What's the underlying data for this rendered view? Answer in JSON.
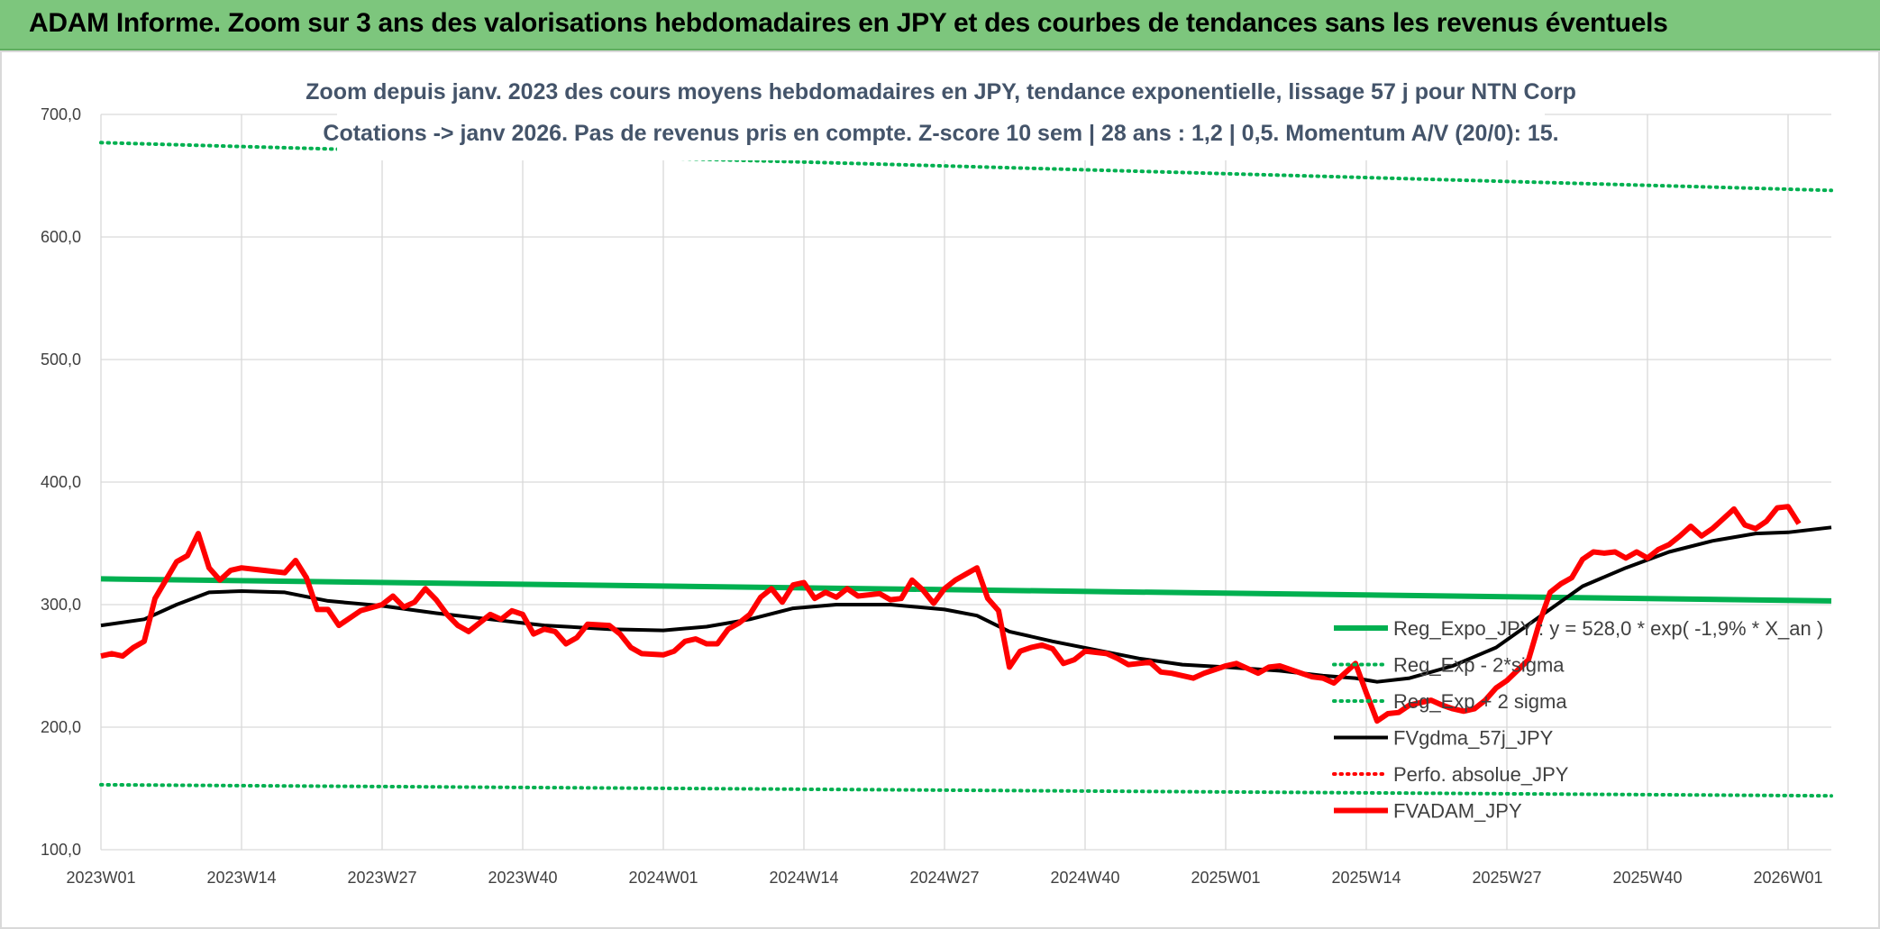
{
  "banner": {
    "title": "ADAM Informe. Zoom sur 3 ans des valorisations hebdomadaires en JPY et des courbes de tendances sans les revenus éventuels"
  },
  "colors": {
    "banner_bg": "#7dc67d",
    "green": "#00b050",
    "black": "#000000",
    "red": "#ff0000",
    "dark_red": "#c00000",
    "grid": "#d9d9d9",
    "subtitle": "#44546a"
  },
  "chart_data": {
    "type": "line",
    "subtitle_lines": [
      "Zoom depuis janv. 2023 des cours moyens hebdomadaires en JPY, tendance exponentielle, lissage 57 j pour NTN Corp",
      "Cotations -> janv 2026. Pas de revenus pris en compte. Z-score 10 sem | 28 ans : 1,2 | 0,5. Momentum A/V (20/0): 15."
    ],
    "ylim": [
      100,
      700
    ],
    "yticks": [
      "100,0",
      "200,0",
      "300,0",
      "400,0",
      "500,0",
      "600,0",
      "700,0"
    ],
    "x_start": "2023W01",
    "x_end": "2026W05",
    "xticks": [
      "2023W01",
      "2023W14",
      "2023W27",
      "2023W40",
      "2024W01",
      "2024W14",
      "2024W27",
      "2024W40",
      "2025W01",
      "2025W14",
      "2025W27",
      "2025W40",
      "2026W01"
    ],
    "grid": true,
    "legend_position": "bottom-right",
    "series": [
      {
        "name": "Reg_Expo_JPY : y = 528,0 * exp( -1,9% *  X_an )",
        "style": "solid-thick",
        "color": "#00b050",
        "points": [
          [
            "2023W01",
            321
          ],
          [
            "2026W05",
            303
          ]
        ]
      },
      {
        "name": "Reg_Exp - 2*sigma",
        "style": "dotted",
        "color": "#00b050",
        "points": [
          [
            "2023W01",
            153
          ],
          [
            "2026W05",
            144
          ]
        ]
      },
      {
        "name": "Reg_Exp + 2 sigma",
        "style": "dotted",
        "color": "#00b050",
        "points": [
          [
            "2023W01",
            677
          ],
          [
            "2026W05",
            638
          ]
        ]
      },
      {
        "name": "FVgdma_57j_JPY",
        "style": "solid",
        "color": "#000000",
        "points": [
          [
            "2023W01",
            283
          ],
          [
            "2023W05",
            288
          ],
          [
            "2023W08",
            300
          ],
          [
            "2023W11",
            310
          ],
          [
            "2023W14",
            311
          ],
          [
            "2023W18",
            310
          ],
          [
            "2023W22",
            303
          ],
          [
            "2023W27",
            299
          ],
          [
            "2023W32",
            293
          ],
          [
            "2023W37",
            288
          ],
          [
            "2023W42",
            283
          ],
          [
            "2023W48",
            280
          ],
          [
            "2024W01",
            279
          ],
          [
            "2024W05",
            282
          ],
          [
            "2024W09",
            288
          ],
          [
            "2024W13",
            297
          ],
          [
            "2024W17",
            300
          ],
          [
            "2024W22",
            300
          ],
          [
            "2024W27",
            296
          ],
          [
            "2024W30",
            291
          ],
          [
            "2024W33",
            278
          ],
          [
            "2024W37",
            270
          ],
          [
            "2024W41",
            263
          ],
          [
            "2024W45",
            256
          ],
          [
            "2024W49",
            251
          ],
          [
            "2025W01",
            249
          ],
          [
            "2025W06",
            246
          ],
          [
            "2025W10",
            242
          ],
          [
            "2025W13",
            240
          ],
          [
            "2025W15",
            237
          ],
          [
            "2025W18",
            240
          ],
          [
            "2025W22",
            250
          ],
          [
            "2025W26",
            265
          ],
          [
            "2025W30",
            290
          ],
          [
            "2025W34",
            315
          ],
          [
            "2025W38",
            330
          ],
          [
            "2025W42",
            343
          ],
          [
            "2025W46",
            352
          ],
          [
            "2025W50",
            358
          ],
          [
            "2026W01",
            359
          ],
          [
            "2026W05",
            363
          ]
        ]
      },
      {
        "name": "Perfo. absolue_JPY",
        "style": "dotted",
        "color": "#ff0000",
        "points": []
      },
      {
        "name": "FVADAM_JPY",
        "style": "solid-thick",
        "color": "#ff0000",
        "points": [
          [
            "2023W01",
            258
          ],
          [
            "2023W02",
            260
          ],
          [
            "2023W03",
            258
          ],
          [
            "2023W04",
            265
          ],
          [
            "2023W05",
            270
          ],
          [
            "2023W06",
            305
          ],
          [
            "2023W07",
            320
          ],
          [
            "2023W08",
            335
          ],
          [
            "2023W09",
            340
          ],
          [
            "2023W10",
            358
          ],
          [
            "2023W11",
            330
          ],
          [
            "2023W12",
            320
          ],
          [
            "2023W13",
            328
          ],
          [
            "2023W14",
            330
          ],
          [
            "2023W16",
            328
          ],
          [
            "2023W18",
            326
          ],
          [
            "2023W19",
            336
          ],
          [
            "2023W20",
            322
          ],
          [
            "2023W21",
            296
          ],
          [
            "2023W22",
            296
          ],
          [
            "2023W23",
            283
          ],
          [
            "2023W25",
            295
          ],
          [
            "2023W27",
            300
          ],
          [
            "2023W28",
            307
          ],
          [
            "2023W29",
            298
          ],
          [
            "2023W30",
            302
          ],
          [
            "2023W31",
            313
          ],
          [
            "2023W32",
            304
          ],
          [
            "2023W33",
            292
          ],
          [
            "2023W34",
            283
          ],
          [
            "2023W35",
            278
          ],
          [
            "2023W37",
            292
          ],
          [
            "2023W38",
            288
          ],
          [
            "2023W39",
            295
          ],
          [
            "2023W40",
            292
          ],
          [
            "2023W41",
            276
          ],
          [
            "2023W42",
            280
          ],
          [
            "2023W43",
            278
          ],
          [
            "2023W44",
            268
          ],
          [
            "2023W45",
            273
          ],
          [
            "2023W46",
            284
          ],
          [
            "2023W48",
            283
          ],
          [
            "2023W49",
            276
          ],
          [
            "2023W50",
            265
          ],
          [
            "2023W51",
            260
          ],
          [
            "2024W01",
            259
          ],
          [
            "2024W02",
            262
          ],
          [
            "2024W03",
            270
          ],
          [
            "2024W04",
            272
          ],
          [
            "2024W05",
            268
          ],
          [
            "2024W06",
            268
          ],
          [
            "2024W07",
            280
          ],
          [
            "2024W08",
            285
          ],
          [
            "2024W09",
            292
          ],
          [
            "2024W10",
            306
          ],
          [
            "2024W11",
            313
          ],
          [
            "2024W12",
            302
          ],
          [
            "2024W13",
            316
          ],
          [
            "2024W14",
            318
          ],
          [
            "2024W15",
            305
          ],
          [
            "2024W16",
            310
          ],
          [
            "2024W17",
            306
          ],
          [
            "2024W18",
            313
          ],
          [
            "2024W19",
            307
          ],
          [
            "2024W21",
            309
          ],
          [
            "2024W22",
            304
          ],
          [
            "2024W23",
            305
          ],
          [
            "2024W24",
            320
          ],
          [
            "2024W25",
            312
          ],
          [
            "2024W26",
            301
          ],
          [
            "2024W27",
            313
          ],
          [
            "2024W28",
            320
          ],
          [
            "2024W29",
            325
          ],
          [
            "2024W30",
            330
          ],
          [
            "2024W31",
            305
          ],
          [
            "2024W32",
            295
          ],
          [
            "2024W33",
            249
          ],
          [
            "2024W34",
            262
          ],
          [
            "2024W35",
            265
          ],
          [
            "2024W36",
            267
          ],
          [
            "2024W37",
            264
          ],
          [
            "2024W38",
            252
          ],
          [
            "2024W39",
            255
          ],
          [
            "2024W40",
            262
          ],
          [
            "2024W42",
            260
          ],
          [
            "2024W43",
            256
          ],
          [
            "2024W44",
            251
          ],
          [
            "2024W46",
            253
          ],
          [
            "2024W47",
            245
          ],
          [
            "2024W48",
            244
          ],
          [
            "2024W50",
            240
          ],
          [
            "2024W51",
            244
          ],
          [
            "2024W52",
            247
          ],
          [
            "2025W01",
            250
          ],
          [
            "2025W02",
            252
          ],
          [
            "2025W04",
            244
          ],
          [
            "2025W05",
            249
          ],
          [
            "2025W06",
            250
          ],
          [
            "2025W08",
            244
          ],
          [
            "2025W09",
            241
          ],
          [
            "2025W10",
            240
          ],
          [
            "2025W11",
            236
          ],
          [
            "2025W12",
            244
          ],
          [
            "2025W13",
            252
          ],
          [
            "2025W14",
            228
          ],
          [
            "2025W15",
            205
          ],
          [
            "2025W16",
            211
          ],
          [
            "2025W17",
            212
          ],
          [
            "2025W18",
            218
          ],
          [
            "2025W19",
            220
          ],
          [
            "2025W20",
            222
          ],
          [
            "2025W21",
            218
          ],
          [
            "2025W22",
            215
          ],
          [
            "2025W23",
            213
          ],
          [
            "2025W24",
            215
          ],
          [
            "2025W25",
            222
          ],
          [
            "2025W26",
            232
          ],
          [
            "2025W27",
            238
          ],
          [
            "2025W29",
            255
          ],
          [
            "2025W30",
            285
          ],
          [
            "2025W31",
            310
          ],
          [
            "2025W32",
            317
          ],
          [
            "2025W33",
            322
          ],
          [
            "2025W34",
            337
          ],
          [
            "2025W35",
            343
          ],
          [
            "2025W36",
            342
          ],
          [
            "2025W37",
            343
          ],
          [
            "2025W38",
            338
          ],
          [
            "2025W39",
            343
          ],
          [
            "2025W40",
            338
          ],
          [
            "2025W41",
            345
          ],
          [
            "2025W42",
            349
          ],
          [
            "2025W43",
            356
          ],
          [
            "2025W44",
            364
          ],
          [
            "2025W45",
            356
          ],
          [
            "2025W46",
            362
          ],
          [
            "2025W47",
            370
          ],
          [
            "2025W48",
            378
          ],
          [
            "2025W49",
            365
          ],
          [
            "2025W50",
            362
          ],
          [
            "2025W51",
            368
          ],
          [
            "2025W52",
            379
          ],
          [
            "2026W01",
            380
          ],
          [
            "2026W02",
            366
          ]
        ]
      }
    ]
  }
}
